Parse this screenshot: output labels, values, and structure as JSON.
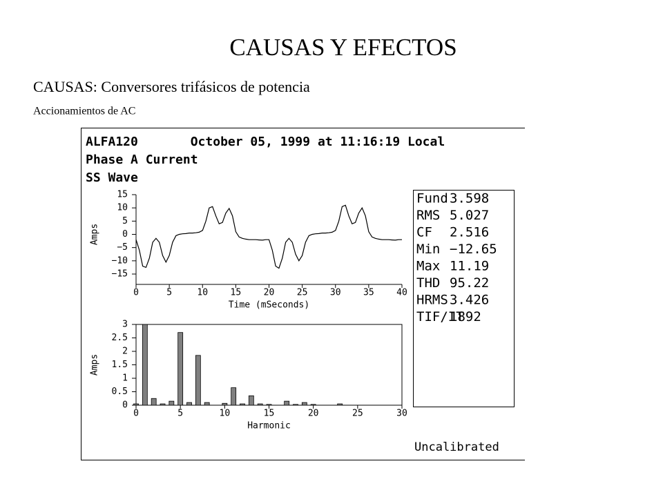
{
  "slide": {
    "title": "CAUSAS Y EFECTOS",
    "subtitle": "CAUSAS: Conversores trifásicos de potencia",
    "text": "Accionamientos de AC"
  },
  "screenshot": {
    "header": [
      "ALFA120       October 05, 1999 at 11:16:19 Local",
      "Phase A Current",
      "SS Wave"
    ],
    "stats": [
      {
        "label": "Fund",
        "value": "3.598"
      },
      {
        "label": "RMS",
        "value": "5.027"
      },
      {
        "label": "CF",
        "value": "2.516"
      },
      {
        "label": "Min",
        "value": "−12.65"
      },
      {
        "label": "Max",
        "value": "11.19"
      },
      {
        "label": "THD",
        "value": "95.22"
      },
      {
        "label": "HRMS",
        "value": "3.426"
      },
      {
        "label": "TIF/IT",
        "value": "1892"
      }
    ],
    "footer": "Uncalibrated"
  },
  "chart_data": [
    {
      "type": "line",
      "color": "#000000",
      "y_label": "Amps",
      "x_label": "Time (mSeconds)",
      "xlim": [
        0,
        40
      ],
      "xticks": [
        0,
        5,
        10,
        15,
        20,
        25,
        30,
        35,
        40
      ],
      "ylim": [
        -15,
        15
      ],
      "yticks": [
        {
          "value": -15,
          "label": "−15"
        },
        {
          "value": -10,
          "label": "−10"
        },
        {
          "value": -5,
          "label": "−5"
        },
        0,
        5,
        10,
        15
      ],
      "x": [
        0,
        0.5,
        1,
        1.5,
        2,
        2.5,
        3,
        3.5,
        4,
        4.5,
        5,
        5.5,
        6,
        6.5,
        7,
        7.5,
        8,
        8.5,
        9,
        9.5,
        10,
        10.5,
        11,
        11.5,
        12,
        12.5,
        13,
        13.5,
        14,
        14.5,
        15,
        15.5,
        16,
        16.5,
        17,
        17.5,
        18,
        18.5,
        19,
        19.5,
        20,
        20.5,
        21,
        21.5,
        22,
        22.5,
        23,
        23.5,
        24,
        24.5,
        25,
        25.5,
        26,
        26.5,
        27,
        27.5,
        28,
        28.5,
        29,
        29.5,
        30,
        30.5,
        31,
        31.5,
        32,
        32.5,
        33,
        33.5,
        34,
        34.5,
        35,
        35.5,
        36,
        36.5,
        37,
        37.5,
        38,
        38.5,
        39,
        39.5,
        40
      ],
      "values": [
        -2,
        -6,
        -12,
        -12.5,
        -9,
        -3,
        -1.5,
        -3,
        -8,
        -10.5,
        -8,
        -3,
        -0.5,
        0,
        0.2,
        0.3,
        0.5,
        0.5,
        0.6,
        0.8,
        1.5,
        5,
        10,
        10.5,
        7,
        4,
        4.5,
        8,
        9.8,
        7,
        1,
        -1,
        -1.5,
        -1.8,
        -2,
        -2,
        -2,
        -2.1,
        -2.2,
        -2,
        -2,
        -6,
        -12,
        -12.8,
        -9,
        -3,
        -1.5,
        -3,
        -7.5,
        -10,
        -8,
        -3,
        -0.5,
        0,
        0.2,
        0.3,
        0.5,
        0.5,
        0.6,
        0.8,
        1.5,
        5,
        10.5,
        11,
        7,
        4,
        4.5,
        8,
        10,
        7,
        1,
        -1,
        -1.5,
        -1.8,
        -2,
        -2,
        -2,
        -2.1,
        -2.2,
        -2,
        -2
      ]
    },
    {
      "type": "bar",
      "color": "#808080",
      "y_label": "Amps",
      "x_label": "Harmonic",
      "xlim": [
        0,
        30
      ],
      "xticks": [
        0,
        5,
        10,
        15,
        20,
        25,
        30
      ],
      "ylim": [
        0,
        3
      ],
      "yticks": [
        0,
        0.5,
        1,
        1.5,
        2,
        2.5,
        3
      ],
      "x": [
        0,
        1,
        2,
        3,
        4,
        5,
        6,
        7,
        8,
        9,
        10,
        11,
        12,
        13,
        14,
        15,
        16,
        17,
        18,
        19,
        20,
        21,
        22,
        23,
        24,
        25,
        26,
        27,
        28,
        29,
        30
      ],
      "values": [
        0.05,
        3,
        0.25,
        0.05,
        0.15,
        2.7,
        0.1,
        1.85,
        0.1,
        0,
        0.07,
        0.65,
        0.05,
        0.35,
        0.05,
        0.03,
        0,
        0.15,
        0.03,
        0.1,
        0.03,
        0,
        0,
        0.05,
        0,
        0,
        0,
        0,
        0,
        0,
        0
      ]
    }
  ]
}
